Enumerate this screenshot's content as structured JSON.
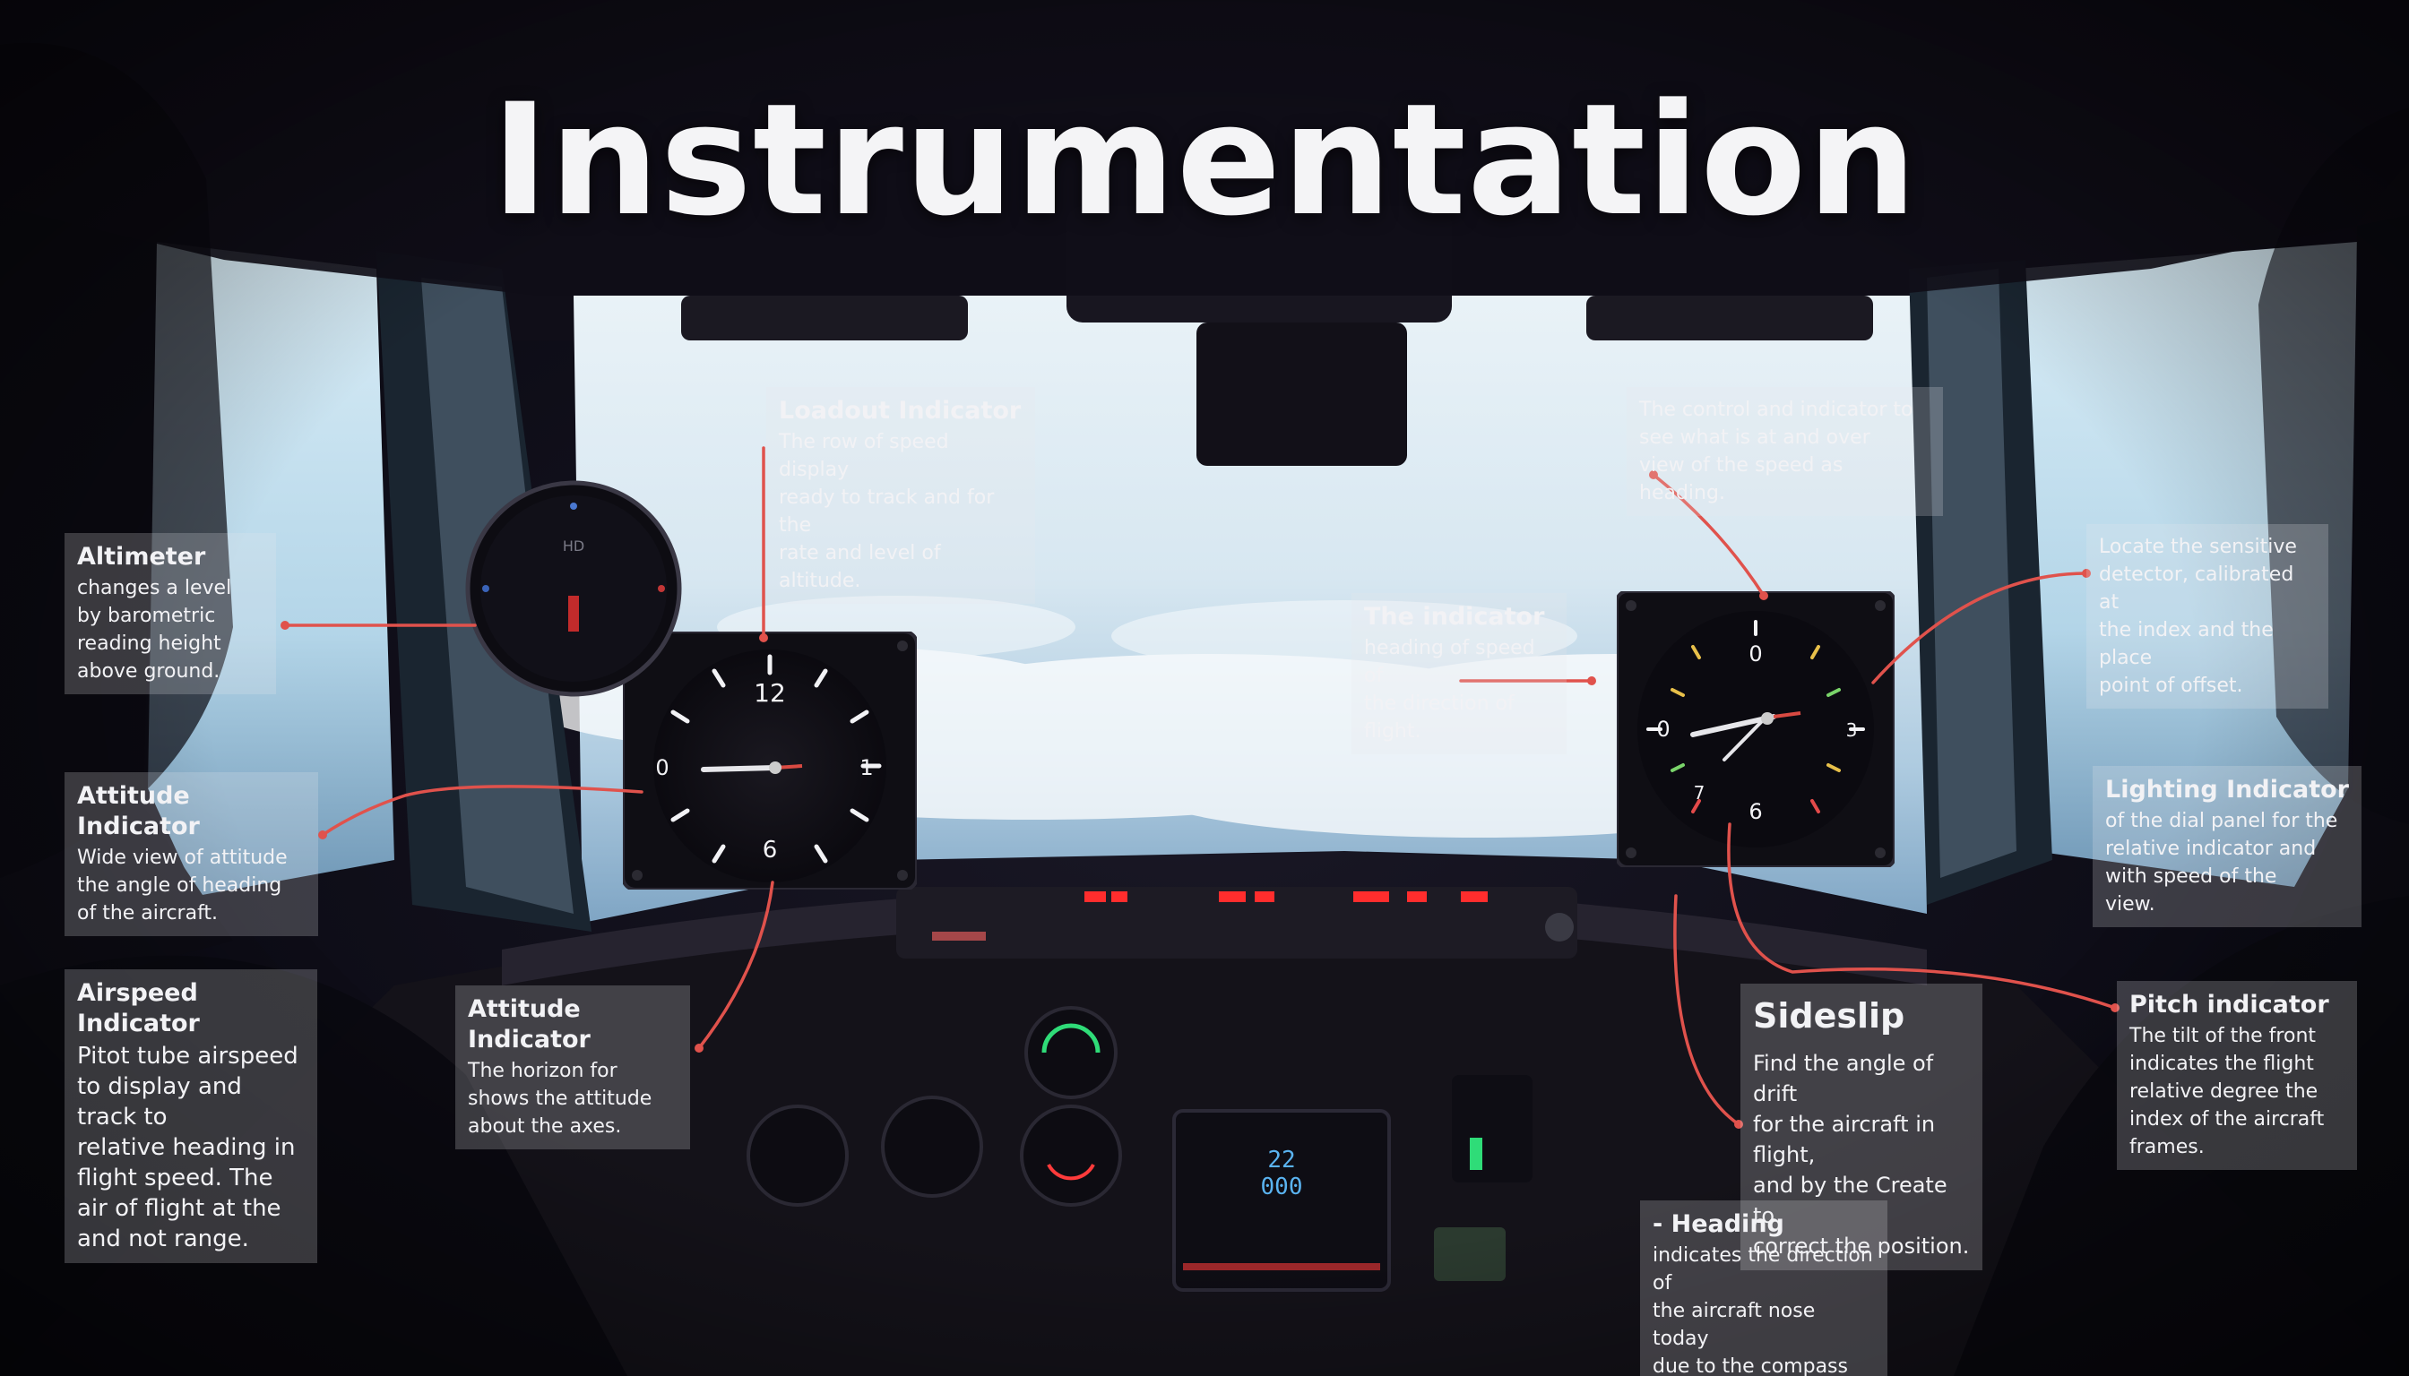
{
  "title": "Instrumentation",
  "callouts": {
    "altimeter": {
      "heading": "Altimeter",
      "body": "changes a level\nby barometric\nreading height\nabove ground."
    },
    "attitude": {
      "heading": "Attitude Indicator",
      "body": "Wide view of attitude\nthe angle of heading\nof the aircraft."
    },
    "airspeed": {
      "heading": "Airspeed Indicator",
      "body": "Pitot tube airspeed\nto display and track to\nrelative heading in\nflight speed. The\nair of flight at the\nand not range."
    },
    "attitude_lower": {
      "heading": "Attitude Indicator",
      "body": "The horizon for\nshows the attitude\nabout the axes."
    },
    "top_center": {
      "heading": "Loadout Indicator",
      "body": "The row of speed display\nready to track and for the\nrate and level of altitude."
    },
    "mid_center": {
      "heading": "The indicator",
      "body": "heading of speed of\nthe direction of flight."
    },
    "top_right": {
      "heading": "",
      "body": "The control and indicator to\nsee what is at and over\nview of the speed as heading."
    },
    "right_upper": {
      "heading": "",
      "body": "Locate the sensitive\ndetector, calibrated at\nthe index and the place\npoint of offset."
    },
    "lighting": {
      "heading": "Lighting Indicator",
      "body": "of the dial panel for the\nrelative indicator and\nwith speed of the\nview."
    },
    "sideslip": {
      "heading": "Sideslip",
      "body": "Find the angle of drift\nfor the aircraft in flight,\nand by the Create to\ncorrect the position."
    },
    "pitch": {
      "heading": "Pitch indicator",
      "body": "The tilt of the front\nindicates the flight\nrelative degree the\nindex of the aircraft\nframes."
    },
    "heading_box": {
      "heading": "- Heading",
      "body": "indicates the direction of\nthe aircraft nose today\ndue to the compass here."
    }
  },
  "gauges": {
    "left": {
      "numerals": [
        "12",
        "0",
        "1",
        "6"
      ]
    },
    "right": {
      "numerals": [
        "0",
        "0",
        "3",
        "6",
        "7"
      ]
    },
    "small": {
      "label": "HD"
    }
  },
  "display": {
    "readout_top": "22",
    "readout_bottom": "000"
  },
  "colors": {
    "accent": "#e0524c",
    "sky": "#c9e2ef",
    "panel": "#141219",
    "text": "#f2f2f5"
  }
}
